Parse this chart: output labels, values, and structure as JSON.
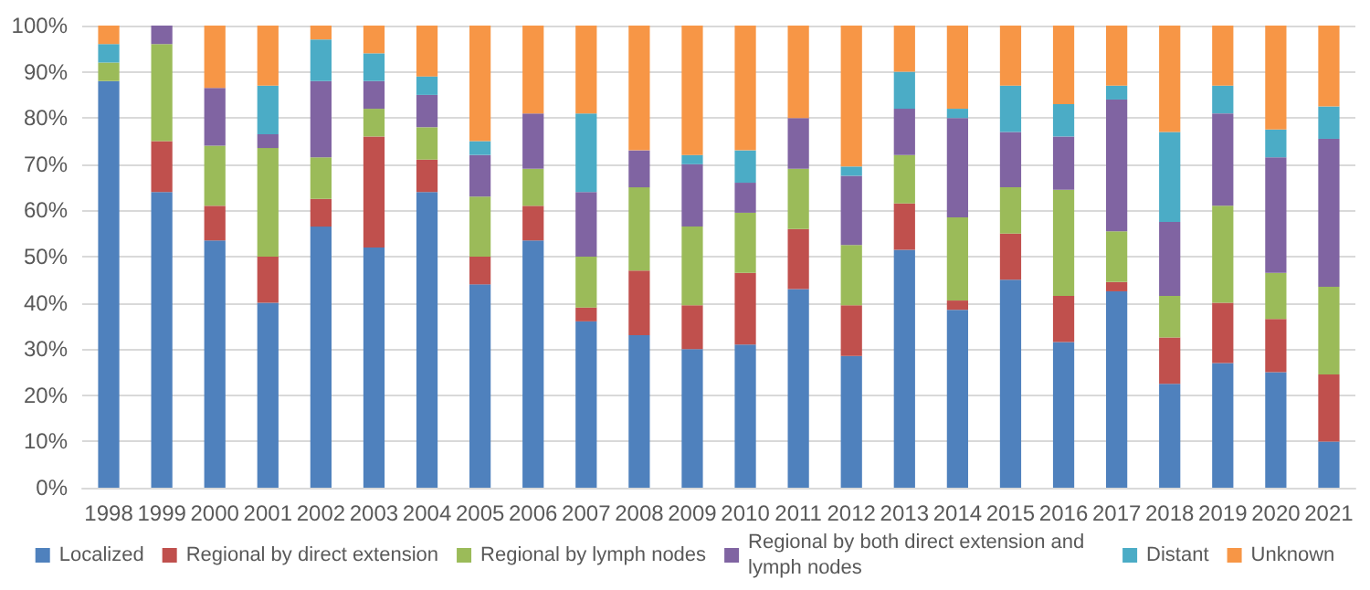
{
  "chart_data": {
    "type": "bar",
    "stacked": true,
    "grid": "y",
    "legend": "bottom",
    "categories": [
      "1998",
      "1999",
      "2000",
      "2001",
      "2002",
      "2003",
      "2004",
      "2005",
      "2006",
      "2007",
      "2008",
      "2009",
      "2010",
      "2011",
      "2012",
      "2013",
      "2014",
      "2015",
      "2016",
      "2017",
      "2018",
      "2019",
      "2020",
      "2021"
    ],
    "ylim": [
      0,
      100
    ],
    "yticks": [
      {
        "value": 0,
        "label": "0%"
      },
      {
        "value": 10,
        "label": "10%"
      },
      {
        "value": 20,
        "label": "20%"
      },
      {
        "value": 30,
        "label": "30%"
      },
      {
        "value": 40,
        "label": "40%"
      },
      {
        "value": 50,
        "label": "50%"
      },
      {
        "value": 60,
        "label": "60%"
      },
      {
        "value": 70,
        "label": "70%"
      },
      {
        "value": 80,
        "label": "80%"
      },
      {
        "value": 90,
        "label": "90%"
      },
      {
        "value": 100,
        "label": "100%"
      }
    ],
    "series": [
      {
        "name": "Localized",
        "color": "#4f81bd",
        "values": [
          88,
          64,
          53.5,
          40,
          56.5,
          52,
          64,
          44,
          53.5,
          36,
          33,
          30,
          31,
          43,
          28.5,
          51.5,
          38.5,
          45,
          31.5,
          42.5,
          22.5,
          27,
          25,
          10
        ]
      },
      {
        "name": "Regional by direct extension",
        "color": "#c0504d",
        "values": [
          0,
          11,
          7.5,
          10,
          6,
          24,
          7,
          6,
          7.5,
          3,
          14,
          9.5,
          15.5,
          13,
          11,
          10,
          2,
          10,
          10,
          2,
          10,
          13,
          11.5,
          14.5
        ]
      },
      {
        "name": "Regional by lymph nodes",
        "color": "#9bbb59",
        "values": [
          4,
          21,
          13,
          23.5,
          9,
          6,
          7,
          13,
          8,
          11,
          18,
          17,
          13,
          13,
          13,
          10.5,
          18,
          10,
          23,
          11,
          9,
          21,
          10,
          19
        ]
      },
      {
        "name": "Regional by both direct extension and lymph nodes",
        "color": "#8064a2",
        "values": [
          0,
          4,
          12.5,
          3,
          16.5,
          6,
          7,
          9,
          12,
          14,
          8,
          13.5,
          6.5,
          11,
          15,
          10,
          21.5,
          12,
          11.5,
          28.5,
          16,
          20,
          25,
          32
        ]
      },
      {
        "name": "Distant",
        "color": "#4bacc6",
        "values": [
          4,
          0,
          0,
          10.5,
          9,
          6,
          4,
          3,
          0,
          17,
          0,
          2,
          7,
          0,
          2,
          8,
          2,
          10,
          7,
          3,
          19.5,
          6,
          6,
          7
        ]
      },
      {
        "name": "Unknown",
        "color": "#f79646",
        "values": [
          4,
          0,
          13.5,
          13,
          3,
          6,
          11,
          25,
          19,
          19,
          27,
          28,
          27,
          20,
          30.5,
          10,
          18,
          13,
          17,
          13,
          23,
          13,
          22.5,
          17.5
        ]
      }
    ]
  }
}
